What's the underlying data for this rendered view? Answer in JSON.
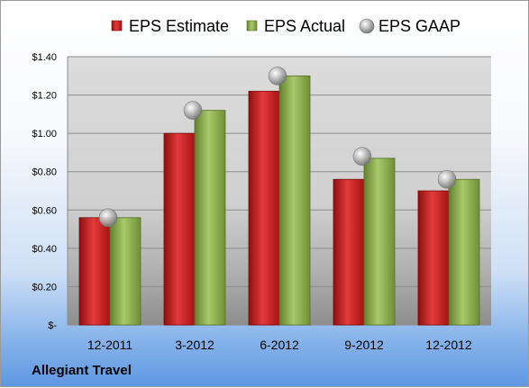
{
  "company_label": "Allegiant Travel",
  "chart_data": {
    "type": "bar",
    "categories": [
      "12-2011",
      "3-2012",
      "6-2012",
      "9-2012",
      "12-2012"
    ],
    "series": [
      {
        "name": "EPS Estimate",
        "kind": "bar",
        "color": "#cc1f1f",
        "values": [
          0.56,
          1.0,
          1.22,
          0.76,
          0.7
        ]
      },
      {
        "name": "EPS Actual",
        "kind": "bar",
        "color": "#8fb050",
        "values": [
          0.56,
          1.12,
          1.3,
          0.87,
          0.76
        ]
      },
      {
        "name": "EPS GAAP",
        "kind": "marker",
        "color": "#b8b8b8",
        "values": [
          0.56,
          1.12,
          1.3,
          0.88,
          0.76
        ]
      }
    ],
    "ylim": [
      0,
      1.4
    ],
    "yticks": [
      0,
      0.2,
      0.4,
      0.6,
      0.8,
      1.0,
      1.2,
      1.4
    ],
    "ytick_labels": [
      "$-",
      "$0.20",
      "$0.40",
      "$0.60",
      "$0.80",
      "$1.00",
      "$1.20",
      "$1.40"
    ],
    "legend_position": "top",
    "grid": true
  }
}
